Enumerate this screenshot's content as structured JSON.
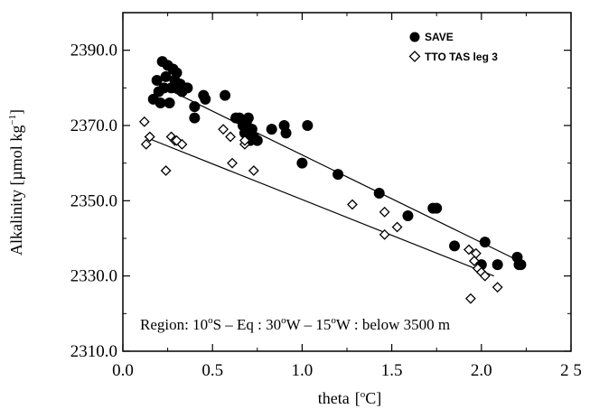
{
  "chart_data": {
    "type": "scatter",
    "xlabel": "theta",
    "xunit_prefix": "[",
    "xunit_degree": "o",
    "xunit_suffix": "C]",
    "ylabel": "Alkalinity [µmol kg",
    "yunit_sup": "−1",
    "yunit_close": "]",
    "xlim": [
      0.0,
      2.5
    ],
    "ylim": [
      2310.0,
      2400.0
    ],
    "x_ticks": [
      "0.0",
      "0.5",
      "1.0",
      "1.5",
      "2.0",
      "2 5"
    ],
    "x_tick_values": [
      0.0,
      0.5,
      1.0,
      1.5,
      2.0,
      2.5
    ],
    "y_ticks": [
      "2310.0",
      "2330.0",
      "2350.0",
      "2370.0",
      "2390.0"
    ],
    "y_tick_values": [
      2310,
      2330,
      2350,
      2370,
      2390
    ],
    "legend_position": "top-right",
    "annotation": {
      "parts": [
        "Region: 10",
        "o",
        "S – Eq : 30",
        "o",
        "W – 15",
        "o",
        "W : below 3500 m"
      ]
    },
    "series": [
      {
        "name": "SAVE",
        "marker": "filled-circle",
        "color": "#000000",
        "points": [
          [
            0.17,
            2377
          ],
          [
            0.19,
            2382
          ],
          [
            0.2,
            2379
          ],
          [
            0.21,
            2376
          ],
          [
            0.22,
            2387
          ],
          [
            0.23,
            2380
          ],
          [
            0.24,
            2383
          ],
          [
            0.25,
            2386
          ],
          [
            0.26,
            2376
          ],
          [
            0.27,
            2380
          ],
          [
            0.28,
            2385
          ],
          [
            0.29,
            2382
          ],
          [
            0.3,
            2384
          ],
          [
            0.31,
            2380
          ],
          [
            0.32,
            2381
          ],
          [
            0.33,
            2379
          ],
          [
            0.36,
            2380
          ],
          [
            0.4,
            2372
          ],
          [
            0.4,
            2375
          ],
          [
            0.45,
            2378
          ],
          [
            0.46,
            2377
          ],
          [
            0.57,
            2378
          ],
          [
            0.63,
            2372
          ],
          [
            0.65,
            2372
          ],
          [
            0.67,
            2370
          ],
          [
            0.68,
            2368
          ],
          [
            0.69,
            2371
          ],
          [
            0.7,
            2372
          ],
          [
            0.71,
            2366
          ],
          [
            0.72,
            2369
          ],
          [
            0.73,
            2367
          ],
          [
            0.75,
            2366
          ],
          [
            0.83,
            2369
          ],
          [
            0.9,
            2370
          ],
          [
            0.91,
            2368
          ],
          [
            1.0,
            2360
          ],
          [
            1.03,
            2370
          ],
          [
            1.2,
            2357
          ],
          [
            1.43,
            2352
          ],
          [
            1.59,
            2346
          ],
          [
            1.73,
            2348
          ],
          [
            1.75,
            2348
          ],
          [
            1.85,
            2338
          ],
          [
            2.0,
            2333
          ],
          [
            2.02,
            2339
          ],
          [
            2.09,
            2333
          ],
          [
            2.2,
            2335
          ],
          [
            2.21,
            2333
          ],
          [
            2.22,
            2333
          ]
        ]
      },
      {
        "name": "TTO TAS leg 3",
        "marker": "open-diamond",
        "color": "#000000",
        "points": [
          [
            0.12,
            2371
          ],
          [
            0.13,
            2365
          ],
          [
            0.15,
            2367
          ],
          [
            0.24,
            2358
          ],
          [
            0.27,
            2367
          ],
          [
            0.29,
            2366
          ],
          [
            0.3,
            2366
          ],
          [
            0.33,
            2365
          ],
          [
            0.56,
            2369
          ],
          [
            0.6,
            2367
          ],
          [
            0.61,
            2360
          ],
          [
            0.68,
            2365
          ],
          [
            0.68,
            2366
          ],
          [
            0.73,
            2358
          ],
          [
            1.28,
            2349
          ],
          [
            1.46,
            2347
          ],
          [
            1.46,
            2341
          ],
          [
            1.53,
            2343
          ],
          [
            1.93,
            2337
          ],
          [
            1.94,
            2324
          ],
          [
            1.96,
            2334
          ],
          [
            1.97,
            2336
          ],
          [
            1.98,
            2332
          ],
          [
            2.0,
            2331
          ],
          [
            2.02,
            2330
          ],
          [
            2.09,
            2327
          ]
        ]
      }
    ],
    "fit_lines": [
      {
        "series": "SAVE",
        "from": [
          0.17,
          2381.5
        ],
        "to": [
          2.21,
          2334
        ]
      },
      {
        "series": "TTO TAS leg 3",
        "from": [
          0.12,
          2367
        ],
        "to": [
          2.07,
          2330
        ]
      }
    ]
  }
}
